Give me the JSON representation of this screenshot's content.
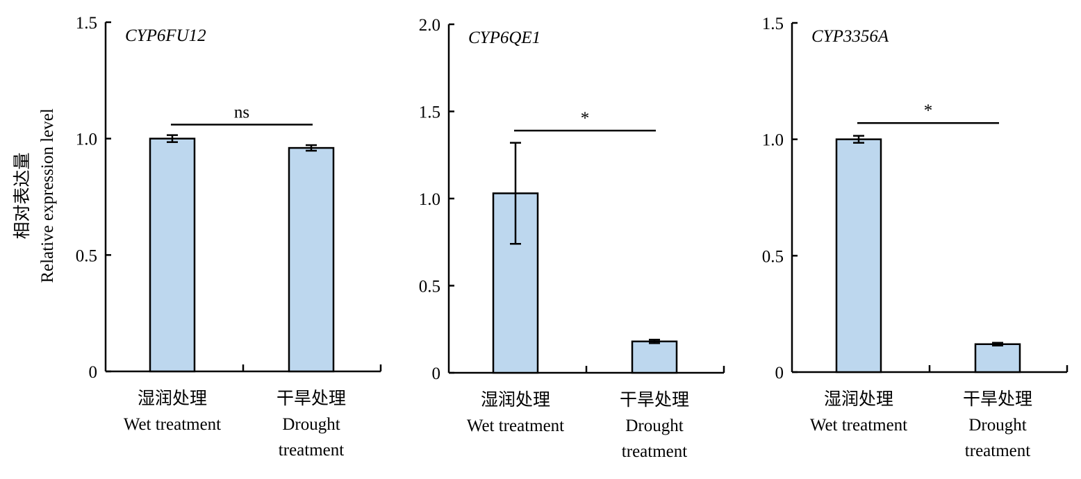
{
  "ylabel_cn": "相对表达量",
  "ylabel_en": "Relative expression level",
  "chart_data": [
    {
      "type": "bar",
      "title": "CYP6FU12",
      "categories": [
        [
          "湿润处理",
          "Wet treatment"
        ],
        [
          "干旱处理",
          "Drought",
          "treatment"
        ]
      ],
      "values": [
        1.0,
        0.96
      ],
      "errors": [
        0.015,
        0.012
      ],
      "ylim": [
        0,
        1.5
      ],
      "yticks": [
        0,
        0.5,
        1.0,
        1.5
      ],
      "ytick_labels": [
        "0",
        "0.5",
        "1.0",
        "1.5"
      ],
      "significance": "ns",
      "bracket_y": 1.06,
      "bar_color": "#bdd7ee"
    },
    {
      "type": "bar",
      "title": "CYP6QE1",
      "categories": [
        [
          "湿润处理",
          "Wet treatment"
        ],
        [
          "干旱处理",
          "Drought",
          "treatment"
        ]
      ],
      "values": [
        1.03,
        0.18
      ],
      "errors": [
        0.29,
        0.01
      ],
      "ylim": [
        0,
        2.0
      ],
      "yticks": [
        0,
        0.5,
        1.0,
        1.5,
        2.0
      ],
      "ytick_labels": [
        "0",
        "0.5",
        "1.0",
        "1.5",
        "2.0"
      ],
      "significance": "*",
      "bracket_y": 1.39,
      "bar_color": "#bdd7ee"
    },
    {
      "type": "bar",
      "title": "CYP3356A",
      "categories": [
        [
          "湿润处理",
          "Wet treatment"
        ],
        [
          "干旱处理",
          "Drought",
          "treatment"
        ]
      ],
      "values": [
        1.0,
        0.12
      ],
      "errors": [
        0.015,
        0.006
      ],
      "ylim": [
        0,
        1.5
      ],
      "yticks": [
        0,
        0.5,
        1.0,
        1.5
      ],
      "ytick_labels": [
        "0",
        "0.5",
        "1.0",
        "1.5"
      ],
      "significance": "*",
      "bracket_y": 1.07,
      "bar_color": "#bdd7ee"
    }
  ]
}
